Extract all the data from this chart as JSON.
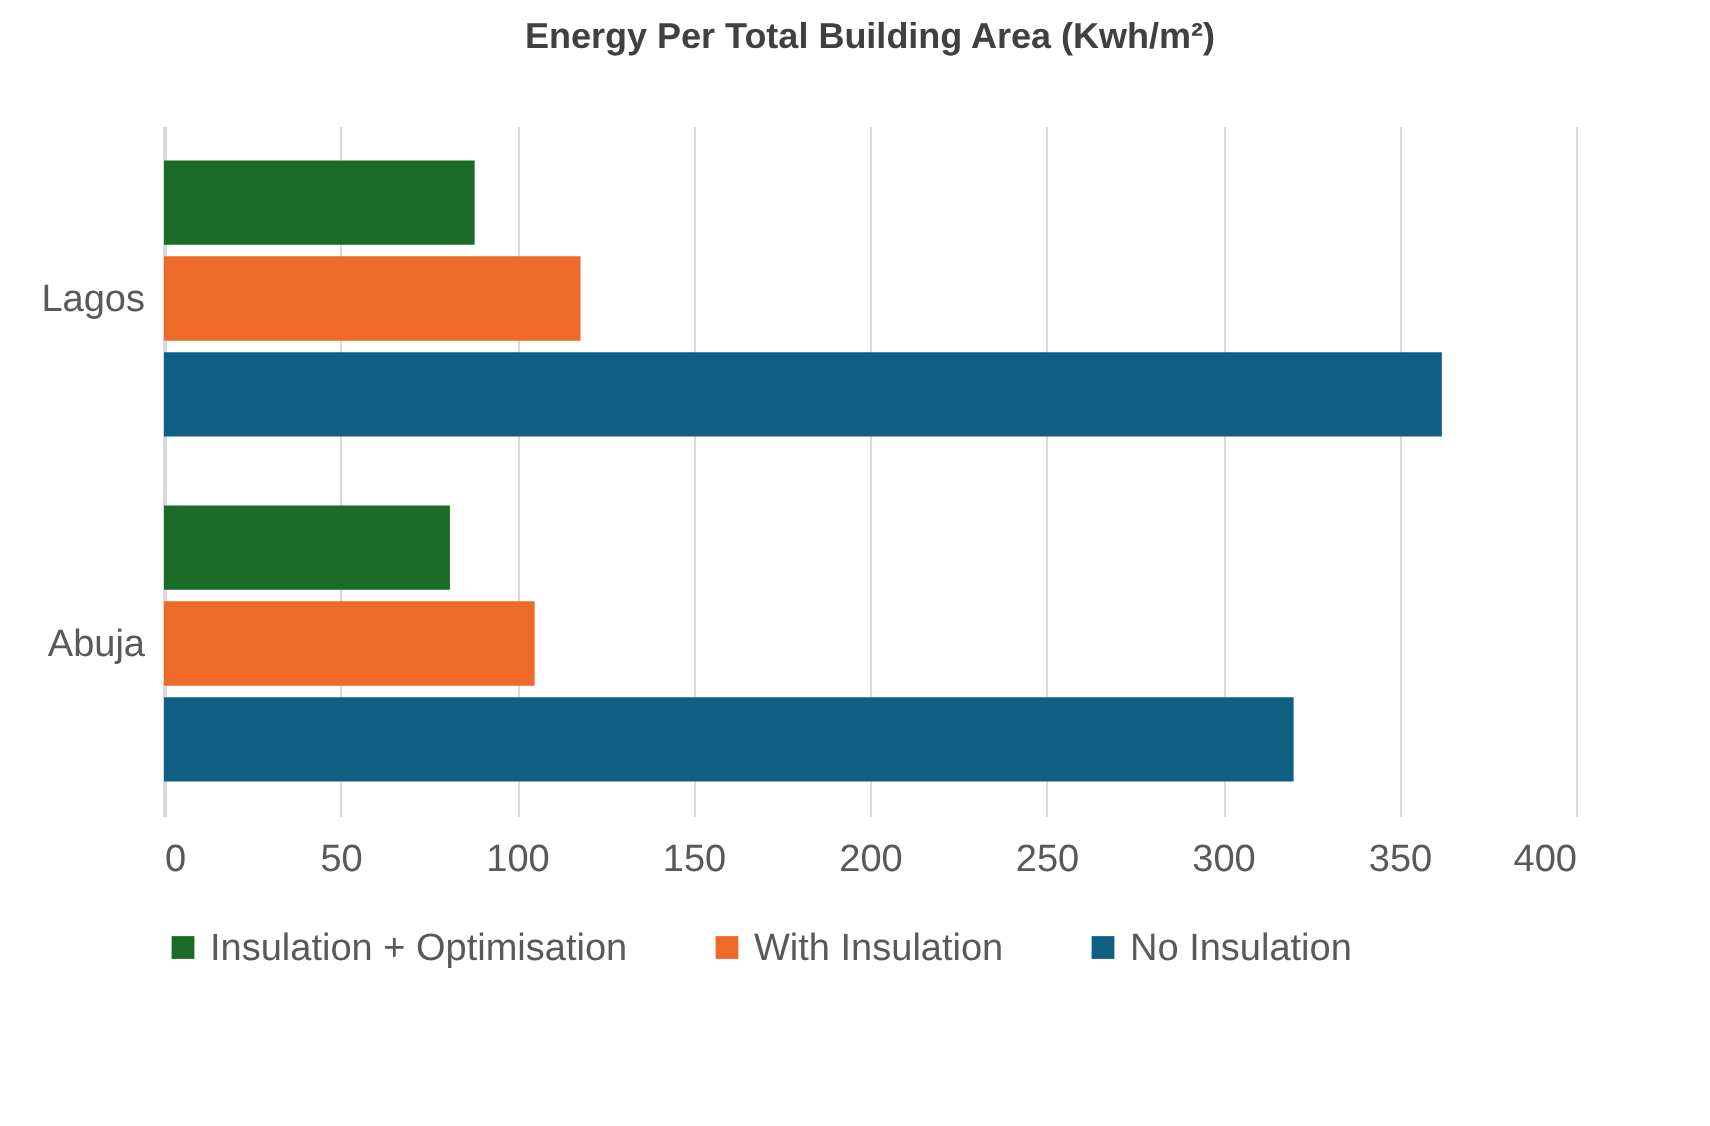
{
  "chart_data": {
    "type": "bar",
    "orientation": "horizontal",
    "title": "Energy Per Total Building Area (Kwh/m²)",
    "categories": [
      "Lagos",
      "Abuja"
    ],
    "series": [
      {
        "name": "Insulation + Optimisation",
        "color": "#1b6b26",
        "values": [
          88,
          81
        ]
      },
      {
        "name": "With Insulation",
        "color": "#ee6a2a",
        "values": [
          118,
          105
        ]
      },
      {
        "name": "No Insulation",
        "color": "#0f5e84",
        "values": [
          362,
          320
        ]
      }
    ],
    "xlim": [
      0,
      400
    ],
    "xticks": [
      0,
      50,
      100,
      150,
      200,
      250,
      300,
      350,
      400
    ],
    "grid": "x",
    "legend": "bottom"
  }
}
